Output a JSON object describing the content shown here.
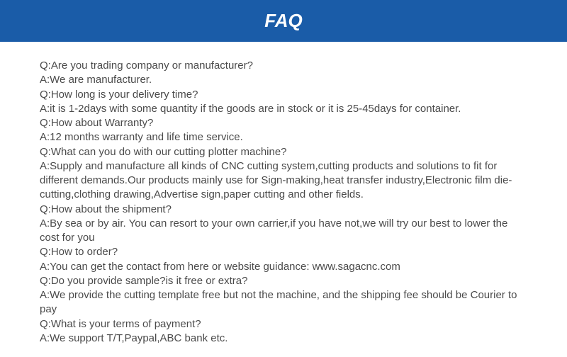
{
  "header": {
    "title": "FAQ",
    "background_color": "#1a5ca8",
    "text_color": "#ffffff",
    "title_fontsize": 26
  },
  "content": {
    "text_color": "#4a4a4a",
    "fontsize": 15,
    "lines": [
      "Q:Are you trading company or manufacturer?",
      "A:We are manufacturer.",
      "Q:How long is your delivery time?",
      "A:it is 1-2days with some quantity if the goods are in stock or it is 25-45days for container.",
      "Q:How about Warranty?",
      "A:12 months warranty and life time service.",
      "Q:What can you do with our cutting plotter machine?",
      "A:Supply and manufacture all kinds of CNC cutting system,cutting products and solutions to fit for different demands.Our products mainly use for Sign-making,heat transfer industry,Electronic film die-cutting,clothing drawing,Advertise sign,paper cutting and other fields.",
      "Q:How about the shipment?",
      "A:By sea or by air. You can resort to your own carrier,if you have not,we will try our best to lower the cost for you",
      "Q:How to order?",
      "A:You can get the contact from here or website guidance: www.sagacnc.com",
      "Q:Do you provide sample?is it free or extra?",
      "A:We provide the cutting template free but not the machine, and the shipping fee should be Courier to pay",
      "Q:What is your terms of payment?",
      "A:We support T/T,Paypal,ABC bank etc."
    ]
  }
}
